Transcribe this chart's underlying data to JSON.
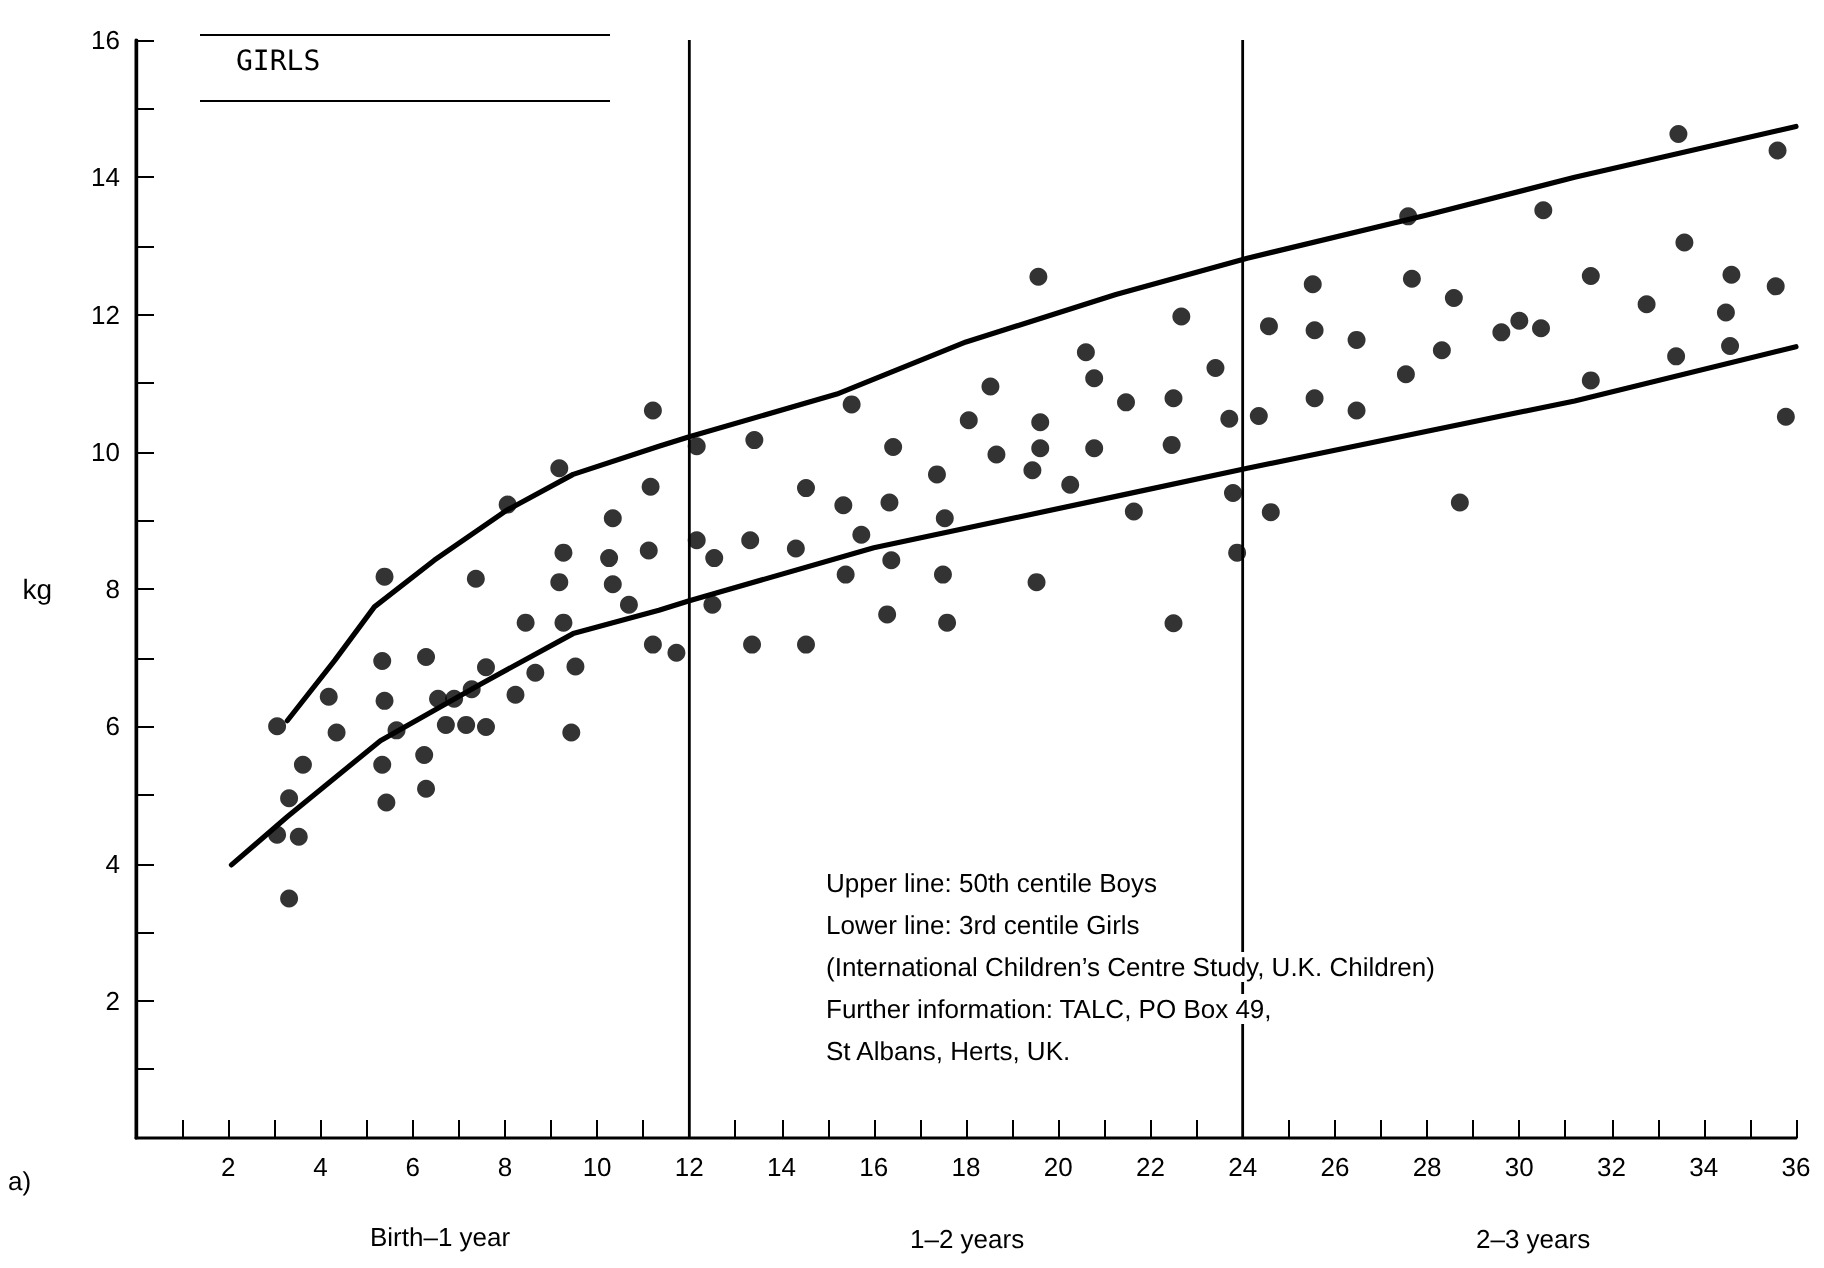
{
  "chart_data": {
    "type": "scatter",
    "ylabel": "kg",
    "annotations": [
      "GIRLS",
      "Upper line: 50th centile Boys",
      "Lower line: 3rd centile Girls",
      "(International Children’s Centre Study, U.K. Children)",
      "Further information: TALC, PO Box 49,",
      "St Albans, Herts, UK.",
      "a)",
      "Birth–1 year",
      "1–2 years",
      "2–3 years"
    ],
    "series": [
      {
        "color": "#000000",
        "marker": "circle",
        "x": [
          3.06,
          3.62,
          3.32,
          3.06,
          3.53,
          3.32,
          4.18,
          4.35,
          5.39,
          5.34,
          5.39,
          5.34,
          5.43,
          5.65,
          6.29,
          6.25,
          6.29,
          6.55,
          6.9,
          6.72,
          7.16,
          7.28,
          7.59,
          7.59,
          7.37,
          8.06,
          8.23,
          8.45,
          8.66,
          9.18,
          9.27,
          9.18,
          9.27,
          9.44,
          9.53,
          10.34,
          10.26,
          10.34,
          10.69,
          11.21,
          11.16,
          11.12,
          11.21,
          11.72,
          12.16,
          12.16,
          12.54,
          12.5,
          13.41,
          13.32,
          13.36,
          14.53,
          14.31,
          14.53,
          15.52,
          15.34,
          15.73,
          15.39,
          16.42,
          16.34,
          16.38,
          16.29,
          17.37,
          17.54,
          17.5,
          17.59,
          18.06,
          18.53,
          18.66,
          19.57,
          20.6,
          20.78,
          19.61,
          19.61,
          19.44,
          20.78,
          20.26,
          19.53,
          22.67,
          21.47,
          22.5,
          23.41,
          22.46,
          23.71,
          24.35,
          21.64,
          23.79,
          24.61,
          23.88,
          22.5,
          25.52,
          24.57,
          25.56,
          26.47,
          25.56,
          26.47,
          27.59,
          27.67,
          28.58,
          27.54,
          28.32,
          29.61,
          30.0,
          30.47,
          30.52,
          28.71,
          33.45,
          35.6,
          33.58,
          31.55,
          34.6,
          35.56,
          32.76,
          34.48,
          33.4,
          34.57,
          31.55,
          35.78
        ],
        "values": [
          6.0,
          5.44,
          4.95,
          4.42,
          4.39,
          3.49,
          6.43,
          5.91,
          8.18,
          6.95,
          6.37,
          5.44,
          4.89,
          5.94,
          7.01,
          5.58,
          5.09,
          6.4,
          6.4,
          6.02,
          6.02,
          6.54,
          6.86,
          5.99,
          8.15,
          9.23,
          6.46,
          7.51,
          6.78,
          9.76,
          8.53,
          8.1,
          7.51,
          5.91,
          6.87,
          9.03,
          8.45,
          8.07,
          7.77,
          10.6,
          9.49,
          8.56,
          7.19,
          7.07,
          10.08,
          8.71,
          8.45,
          7.77,
          10.17,
          8.71,
          7.19,
          9.47,
          8.59,
          7.19,
          10.69,
          9.22,
          8.79,
          8.21,
          10.07,
          9.26,
          8.42,
          7.63,
          9.67,
          9.03,
          8.21,
          7.51,
          10.46,
          10.95,
          9.96,
          12.55,
          11.45,
          11.07,
          10.43,
          10.05,
          9.73,
          10.05,
          9.52,
          8.1,
          11.97,
          10.72,
          10.78,
          11.22,
          10.1,
          10.48,
          10.52,
          9.13,
          9.4,
          9.12,
          8.53,
          7.5,
          12.44,
          11.83,
          11.77,
          11.63,
          10.78,
          10.6,
          13.43,
          12.52,
          12.24,
          11.13,
          11.48,
          11.74,
          11.91,
          11.8,
          13.52,
          9.26,
          14.63,
          14.39,
          13.05,
          12.56,
          12.58,
          12.41,
          12.15,
          12.03,
          11.39,
          11.54,
          11.04,
          10.51
        ]
      },
      {
        "type": "line",
        "color": "#000000",
        "marker": "none",
        "line_style": "solid",
        "x": [
          3.28,
          4.31,
          5.17,
          6.47,
          8.02,
          9.48,
          11.34,
          12.0,
          15.2,
          18.0,
          21.25,
          24.1,
          28.0,
          31.2,
          36.0
        ],
        "values": [
          6.08,
          6.96,
          7.74,
          8.42,
          9.14,
          9.67,
          10.08,
          10.22,
          10.84,
          11.6,
          12.29,
          12.82,
          13.45,
          14.0,
          14.74
        ]
      },
      {
        "type": "line",
        "color": "#000000",
        "marker": "none",
        "line_style": "solid",
        "x": [
          2.07,
          3.28,
          5.3,
          7.46,
          9.48,
          11.34,
          12.0,
          16.0,
          21.25,
          24.1,
          31.2,
          36.0
        ],
        "values": [
          3.98,
          4.68,
          5.79,
          6.61,
          7.35,
          7.69,
          7.83,
          8.6,
          9.35,
          9.76,
          10.74,
          11.53
        ]
      }
    ],
    "xlim": [
      0,
      36
    ],
    "xticks": [
      {
        "value": 1,
        "label": null
      },
      2,
      {
        "value": 3,
        "label": null
      },
      4,
      {
        "value": 5,
        "label": null
      },
      6,
      {
        "value": 7,
        "label": null
      },
      8,
      {
        "value": 9,
        "label": null
      },
      10,
      {
        "value": 11,
        "label": null
      },
      12,
      {
        "value": 13,
        "label": null
      },
      14,
      {
        "value": 15,
        "label": null
      },
      16,
      {
        "value": 17,
        "label": null
      },
      18,
      {
        "value": 19,
        "label": null
      },
      20,
      {
        "value": 21,
        "label": null
      },
      22,
      {
        "value": 23,
        "label": null
      },
      24,
      {
        "value": 25,
        "label": null
      },
      26,
      {
        "value": 27,
        "label": null
      },
      28,
      {
        "value": 29,
        "label": null
      },
      30,
      {
        "value": 31,
        "label": null
      },
      32,
      {
        "value": 33,
        "label": null
      },
      34,
      {
        "value": 35,
        "label": null
      },
      36
    ],
    "ylim": [
      0,
      16
    ],
    "yticks": [
      {
        "value": 1,
        "label": null
      },
      2,
      {
        "value": 3,
        "label": null
      },
      4,
      {
        "value": 5,
        "label": null
      },
      6,
      {
        "value": 7,
        "label": null
      },
      8,
      {
        "value": 9,
        "label": null
      },
      10,
      {
        "value": 11,
        "label": null
      },
      12,
      {
        "value": 13,
        "label": null
      },
      14,
      {
        "value": 15,
        "label": null
      },
      16
    ],
    "ref_lines": [
      {
        "axis": "x",
        "value": 12,
        "color": "#000000"
      },
      {
        "axis": "x",
        "value": 24,
        "color": "#000000"
      }
    ],
    "grid": false
  }
}
